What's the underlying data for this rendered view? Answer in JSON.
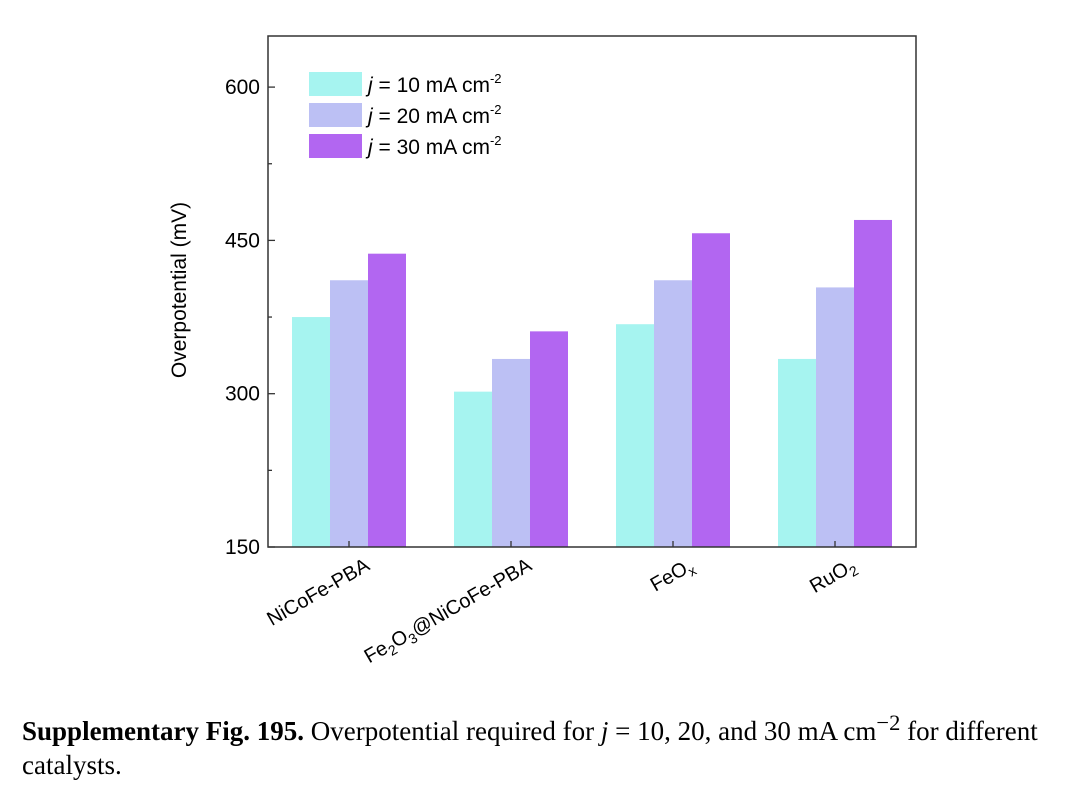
{
  "chart_data": {
    "type": "bar",
    "ylabel": "Overpotential (mV)",
    "xlabel": "",
    "ylim": [
      150,
      650
    ],
    "yticks": [
      150,
      300,
      450,
      600
    ],
    "grid": false,
    "legend_position": "top-left",
    "categories": [
      {
        "label": "NiCoFe-PBA",
        "pre": "NiCoFe-PBA",
        "sub": "",
        "post": ""
      },
      {
        "label": "Fe2O3@NiCoFe-PBA",
        "pre": "Fe",
        "sub": "2",
        "mid": "O",
        "sub2": "3",
        "post": "@NiCoFe-PBA"
      },
      {
        "label": "FeOx",
        "pre": "FeO",
        "sub": "x",
        "post": ""
      },
      {
        "label": "RuO2",
        "pre": "RuO",
        "sub": "2",
        "post": ""
      }
    ],
    "series": [
      {
        "name": "j = 10 mA cm-2",
        "current": "10",
        "color": "#a6f4f0",
        "values": [
          375,
          302,
          368,
          334
        ]
      },
      {
        "name": "j = 20 mA cm-2",
        "current": "20",
        "color": "#bcc0f4",
        "values": [
          411,
          334,
          411,
          404
        ]
      },
      {
        "name": "j = 30 mA cm-2",
        "current": "30",
        "color": "#b266f1",
        "values": [
          437,
          361,
          457,
          470
        ]
      }
    ]
  },
  "caption": {
    "label": "Supplementary Fig. 195.",
    "text_before": " Overpotential required for ",
    "variable": "j",
    "text_mid": " = 10, 20, and 30 mA cm",
    "superscript": "−2",
    "text_after": " for different catalysts."
  }
}
